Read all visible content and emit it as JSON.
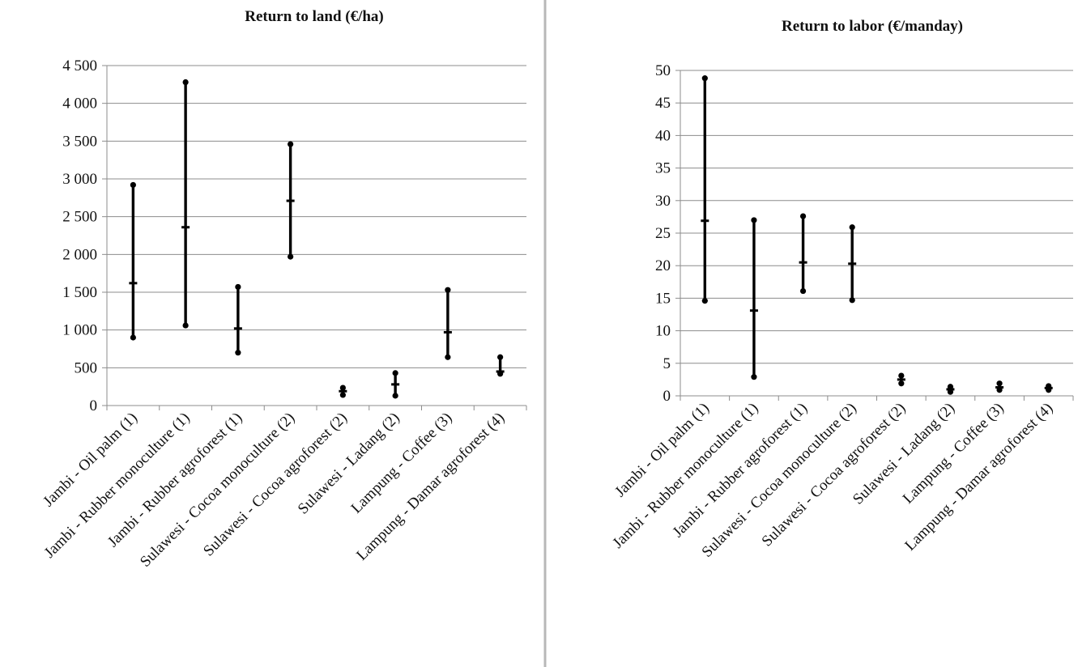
{
  "chart_data": [
    {
      "type": "range",
      "title": "Return to land (€/ha)",
      "xlabel": "",
      "ylabel": "",
      "ylim": [
        0,
        4500
      ],
      "ytick_step": 500,
      "ytick_labels": [
        "0",
        "500",
        "1 000",
        "1 500",
        "2 000",
        "2 500",
        "3 000",
        "3 500",
        "4 000",
        "4 500"
      ],
      "grid": true,
      "categories": [
        "Jambi - Oil palm (1)",
        "Jambi - Rubber monoculture (1)",
        "Jambi - Rubber agroforest (1)",
        "Sulawesi - Cocoa monoculture (2)",
        "Sulawesi - Cocoa agroforest (2)",
        "Sulawesi - Ladang (2)",
        "Lampung - Coffee (3)",
        "Lampung - Damar agroforest (4)"
      ],
      "high": [
        2920,
        4280,
        1570,
        3460,
        235,
        430,
        1530,
        640
      ],
      "mean": [
        1620,
        2360,
        1020,
        2710,
        190,
        280,
        970,
        450
      ],
      "low": [
        900,
        1060,
        700,
        1970,
        140,
        130,
        640,
        420
      ]
    },
    {
      "type": "range",
      "title": "Return to labor (€/manday)",
      "xlabel": "",
      "ylabel": "",
      "ylim": [
        0,
        50
      ],
      "ytick_step": 5,
      "ytick_labels": [
        "0",
        "5",
        "10",
        "15",
        "20",
        "25",
        "30",
        "35",
        "40",
        "45",
        "50"
      ],
      "grid": true,
      "categories": [
        "Jambi - Oil palm (1)",
        "Jambi - Rubber monoculture (1)",
        "Jambi - Rubber agroforest (1)",
        "Sulawesi - Cocoa monoculture (2)",
        "Sulawesi - Cocoa agroforest (2)",
        "Sulawesi - Ladang (2)",
        "Lampung - Coffee (3)",
        "Lampung - Damar agroforest (4)"
      ],
      "high": [
        48.8,
        27.0,
        27.6,
        25.9,
        3.1,
        1.4,
        1.9,
        1.5
      ],
      "mean": [
        26.9,
        13.1,
        20.5,
        20.3,
        2.5,
        1.0,
        1.3,
        1.2
      ],
      "low": [
        14.6,
        2.9,
        16.1,
        14.7,
        1.9,
        0.6,
        0.9,
        0.9
      ]
    }
  ]
}
